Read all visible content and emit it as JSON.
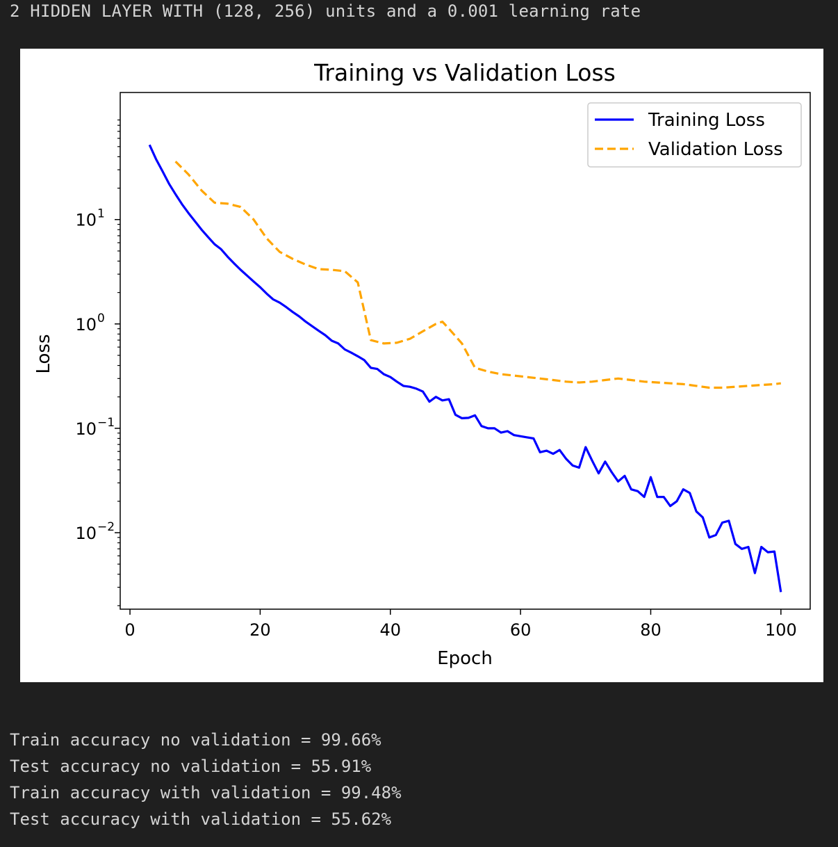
{
  "header": {
    "text": "2 HIDDEN LAYER WITH (128, 256) units and a 0.001 learning rate"
  },
  "chart_data": {
    "type": "line",
    "title": "Training vs Validation Loss",
    "xlabel": "Epoch",
    "ylabel": "Loss",
    "yscale": "log",
    "xlim": [
      -1.5,
      104.5
    ],
    "ylim": [
      0.00185,
      165
    ],
    "xticks": [
      {
        "value": 0,
        "label": "0"
      },
      {
        "value": 20,
        "label": "20"
      },
      {
        "value": 40,
        "label": "40"
      },
      {
        "value": 60,
        "label": "60"
      },
      {
        "value": 80,
        "label": "80"
      },
      {
        "value": 100,
        "label": "100"
      }
    ],
    "yticks": [
      {
        "value": 10,
        "base": "10",
        "exp": "1"
      },
      {
        "value": 1,
        "base": "10",
        "exp": "0"
      },
      {
        "value": 0.1,
        "base": "10",
        "exp": "−1"
      },
      {
        "value": 0.01,
        "base": "10",
        "exp": "−2"
      }
    ],
    "legend_position": "upper-right",
    "series": [
      {
        "name": "Training Loss",
        "color": "#0000ff",
        "style": "solid",
        "x": [
          3,
          4,
          5,
          6,
          7,
          8,
          9,
          10,
          11,
          12,
          13,
          14,
          15,
          16,
          17,
          18,
          19,
          20,
          21,
          22,
          23,
          24,
          25,
          26,
          27,
          28,
          29,
          30,
          31,
          32,
          33,
          34,
          35,
          36,
          37,
          38,
          39,
          40,
          41,
          42,
          43,
          44,
          45,
          46,
          47,
          48,
          49,
          50,
          51,
          52,
          53,
          54,
          55,
          56,
          57,
          58,
          59,
          60,
          61,
          62,
          63,
          64,
          65,
          66,
          67,
          68,
          69,
          70,
          71,
          72,
          73,
          74,
          75,
          76,
          77,
          78,
          79,
          80,
          81,
          82,
          83,
          84,
          85,
          86,
          87,
          88,
          89,
          90,
          91,
          92,
          93,
          94,
          95,
          96,
          97,
          98,
          99,
          100
        ],
        "y": [
          52,
          38,
          29,
          22,
          17.5,
          14,
          11.5,
          9.6,
          8,
          6.8,
          5.8,
          5.2,
          4.4,
          3.8,
          3.3,
          2.9,
          2.55,
          2.25,
          1.95,
          1.72,
          1.6,
          1.45,
          1.3,
          1.18,
          1.05,
          0.95,
          0.86,
          0.78,
          0.69,
          0.65,
          0.57,
          0.53,
          0.49,
          0.45,
          0.38,
          0.37,
          0.33,
          0.31,
          0.28,
          0.255,
          0.25,
          0.24,
          0.225,
          0.18,
          0.2,
          0.185,
          0.19,
          0.135,
          0.125,
          0.126,
          0.133,
          0.105,
          0.1,
          0.1,
          0.091,
          0.094,
          0.086,
          0.084,
          0.082,
          0.08,
          0.059,
          0.061,
          0.057,
          0.062,
          0.051,
          0.044,
          0.042,
          0.066,
          0.049,
          0.037,
          0.048,
          0.038,
          0.031,
          0.035,
          0.026,
          0.025,
          0.022,
          0.034,
          0.022,
          0.022,
          0.018,
          0.02,
          0.026,
          0.024,
          0.016,
          0.014,
          0.009,
          0.0095,
          0.0125,
          0.013,
          0.0078,
          0.007,
          0.0073,
          0.0041,
          0.0073,
          0.0065,
          0.0066,
          0.0027
        ]
      },
      {
        "name": "Validation Loss",
        "color": "#ffa500",
        "style": "dashed",
        "x": [
          7,
          9,
          11,
          13,
          15,
          17,
          19,
          21,
          23,
          25,
          27,
          29,
          31,
          33,
          35,
          37,
          39,
          41,
          43,
          45,
          47,
          48,
          49,
          51,
          53,
          55,
          57,
          59,
          61,
          63,
          65,
          67,
          69,
          71,
          73,
          75,
          77,
          79,
          81,
          83,
          85,
          87,
          89,
          91,
          93,
          95,
          97,
          99,
          100
        ],
        "y": [
          36,
          27,
          19,
          14.5,
          14.2,
          13.2,
          10,
          6.6,
          4.9,
          4.2,
          3.7,
          3.35,
          3.3,
          3.2,
          2.5,
          0.7,
          0.65,
          0.66,
          0.72,
          0.85,
          1,
          1.05,
          0.9,
          0.65,
          0.38,
          0.35,
          0.33,
          0.32,
          0.31,
          0.3,
          0.29,
          0.28,
          0.275,
          0.28,
          0.29,
          0.3,
          0.29,
          0.28,
          0.275,
          0.27,
          0.265,
          0.255,
          0.245,
          0.245,
          0.25,
          0.255,
          0.26,
          0.265,
          0.27
        ]
      }
    ]
  },
  "output": {
    "lines": [
      "Train accuracy no validation = 99.66%",
      "Test accuracy no validation = 55.91%",
      "Train accuracy with validation = 99.48%",
      "Test accuracy with validation = 55.62%"
    ]
  }
}
